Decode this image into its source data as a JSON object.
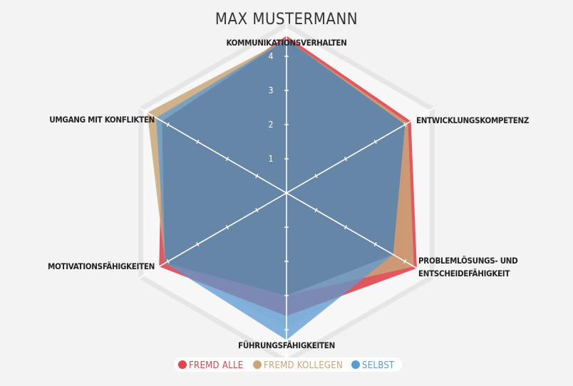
{
  "chart_data": {
    "type": "radar",
    "title": "MAX MUSTERMANN",
    "axes": [
      "KOMMUNIKATIONSVERHALTEN",
      "ENTWICKLUNGSKOMPETENZ",
      [
        "PROBLEMLÖSUNGS- UND",
        "ENTSCHEIDEFÄHIGKEIT"
      ],
      "FÜHRUNGSFÄHIGKEITEN",
      "MOTIVATIONSFÄHIGKEITEN",
      "UMGANG MIT KONFLIKTEN"
    ],
    "r_ticks": [
      "1",
      "2",
      "3",
      "4"
    ],
    "r_range": [
      0,
      5
    ],
    "series": [
      {
        "name": "FREMD ALLE",
        "color": "#e0454f",
        "values": [
          4.6,
          4.2,
          4.4,
          3.6,
          4.3,
          4.2
        ]
      },
      {
        "name": "FREMD KOLLEGEN",
        "color": "#c9a678",
        "values": [
          4.5,
          4.1,
          4.3,
          3.0,
          4.1,
          4.7
        ]
      },
      {
        "name": "SELBST",
        "color": "#5b9bd3",
        "values": [
          4.5,
          4.0,
          3.6,
          4.3,
          4.1,
          4.4
        ]
      }
    ],
    "legend": "bottom"
  }
}
